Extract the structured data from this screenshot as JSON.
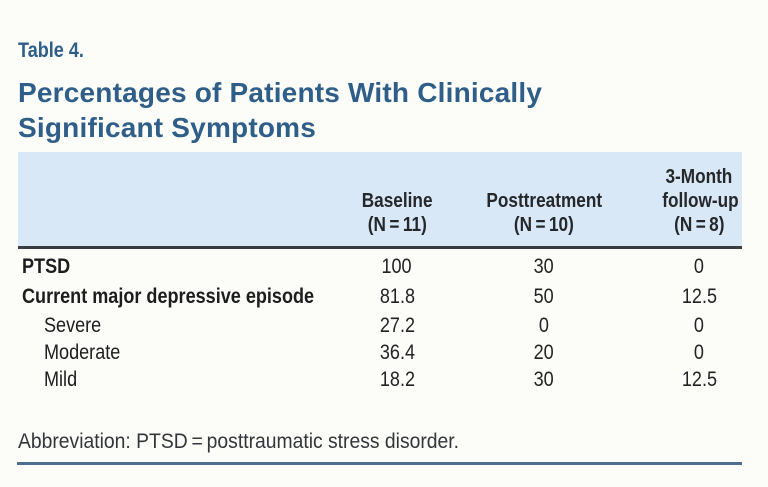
{
  "colors": {
    "background": "#fcfcf9",
    "title_blue": "#2f5e88",
    "header_band": "#d9e8f6",
    "header_rule": "#383c40",
    "bottom_rule": "#4e6f8e",
    "body_text": "#212325"
  },
  "table_label": "Table 4.",
  "title_lines": {
    "0": "Percentages of Patients With Clinically",
    "1": "Significant Symptoms"
  },
  "table": {
    "columns": [
      {
        "lines": [
          "Baseline",
          "(N = 11)"
        ]
      },
      {
        "lines": [
          "Posttreatment",
          "(N = 10)"
        ]
      },
      {
        "lines": [
          "3-Month",
          "follow-up",
          "(N = 8)"
        ]
      }
    ],
    "rows": [
      {
        "label": "PTSD",
        "bold": true,
        "indent": false,
        "values": [
          "100",
          "30",
          "0"
        ]
      },
      {
        "label": "Current major depressive episode",
        "bold": true,
        "indent": false,
        "values": [
          "81.8",
          "50",
          "12.5"
        ]
      },
      {
        "label": "Severe",
        "bold": false,
        "indent": true,
        "values": [
          "27.2",
          "0",
          "0"
        ]
      },
      {
        "label": "Moderate",
        "bold": false,
        "indent": true,
        "values": [
          "36.4",
          "20",
          "0"
        ]
      },
      {
        "label": "Mild",
        "bold": false,
        "indent": true,
        "values": [
          "18.2",
          "30",
          "12.5"
        ]
      }
    ],
    "footnote": "Abbreviation: PTSD = posttraumatic stress disorder."
  },
  "chart_data": {
    "type": "table",
    "title": "Percentages of Patients With Clinically Significant Symptoms",
    "categories": [
      "PTSD",
      "Current major depressive episode",
      "Severe",
      "Moderate",
      "Mild"
    ],
    "series": [
      {
        "name": "Baseline (N = 11)",
        "values": [
          100,
          81.8,
          27.2,
          36.4,
          18.2
        ]
      },
      {
        "name": "Posttreatment (N = 10)",
        "values": [
          30,
          50,
          0,
          20,
          30
        ]
      },
      {
        "name": "3-Month follow-up (N = 8)",
        "values": [
          0,
          12.5,
          0,
          0,
          12.5
        ]
      }
    ]
  }
}
